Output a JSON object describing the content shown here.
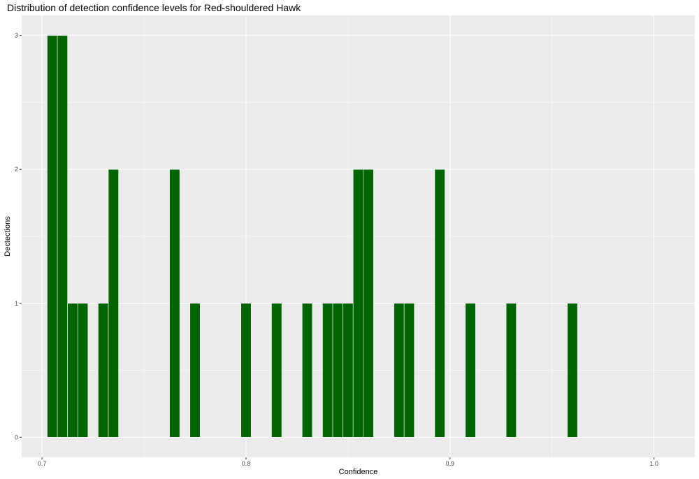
{
  "chart_data": {
    "type": "bar",
    "title": "Distribution of detection confidence levels for Red-shouldered Hawk",
    "xlabel": "Confidence",
    "ylabel": "Dectections",
    "xlim": [
      0.69,
      1.02
    ],
    "ylim": [
      -0.15,
      3.15
    ],
    "x_ticks": [
      0.7,
      0.8,
      0.9,
      1.0
    ],
    "x_tick_labels": [
      "0.7",
      "0.8",
      "0.9",
      "1.0"
    ],
    "y_ticks": [
      0,
      1,
      2,
      3
    ],
    "y_tick_labels": [
      "0",
      "1",
      "2",
      "3"
    ],
    "bin_width": 0.005,
    "bar_color": "#006400",
    "panel_color": "#ebebeb",
    "grid": true,
    "bins": [
      {
        "x": 0.705,
        "count": 3
      },
      {
        "x": 0.71,
        "count": 3
      },
      {
        "x": 0.715,
        "count": 1
      },
      {
        "x": 0.72,
        "count": 1
      },
      {
        "x": 0.73,
        "count": 1
      },
      {
        "x": 0.735,
        "count": 2
      },
      {
        "x": 0.765,
        "count": 2
      },
      {
        "x": 0.775,
        "count": 1
      },
      {
        "x": 0.8,
        "count": 1
      },
      {
        "x": 0.815,
        "count": 1
      },
      {
        "x": 0.83,
        "count": 1
      },
      {
        "x": 0.84,
        "count": 1
      },
      {
        "x": 0.845,
        "count": 1
      },
      {
        "x": 0.85,
        "count": 1
      },
      {
        "x": 0.855,
        "count": 2
      },
      {
        "x": 0.86,
        "count": 2
      },
      {
        "x": 0.875,
        "count": 1
      },
      {
        "x": 0.88,
        "count": 1
      },
      {
        "x": 0.895,
        "count": 2
      },
      {
        "x": 0.91,
        "count": 1
      },
      {
        "x": 0.93,
        "count": 1
      },
      {
        "x": 0.96,
        "count": 1
      }
    ]
  }
}
